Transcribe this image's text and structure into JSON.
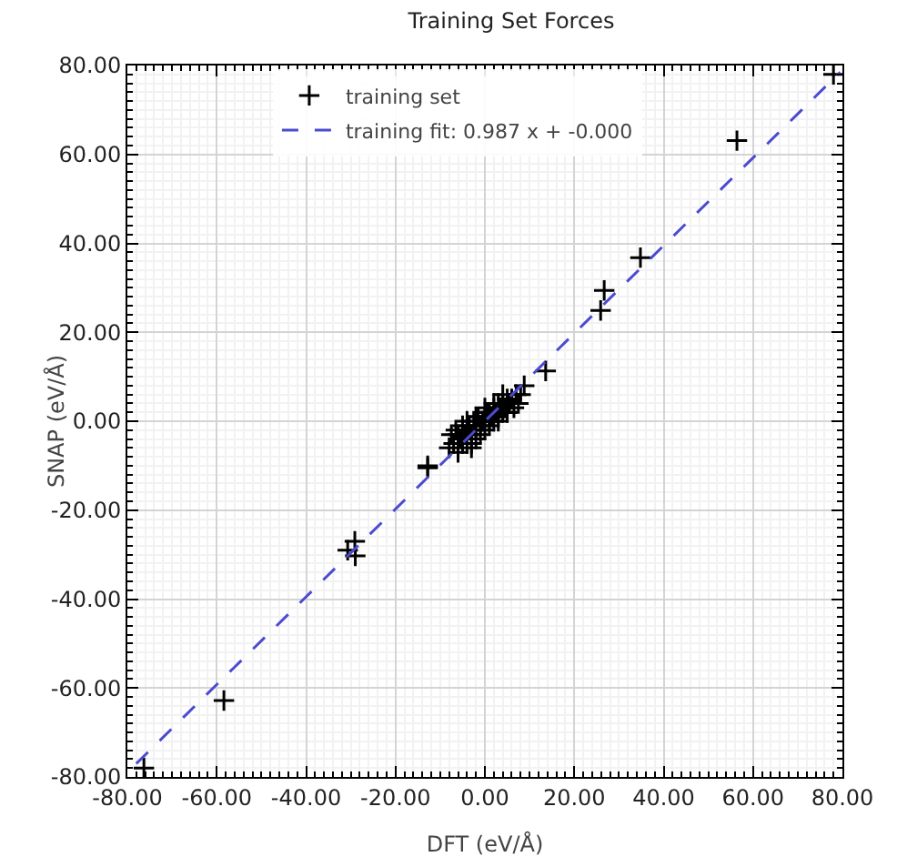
{
  "chart_data": {
    "type": "scatter",
    "title": "Training Set Forces",
    "xlabel": "DFT (eV/Å)",
    "ylabel": "SNAP (eV/Å)",
    "xlim": [
      -80,
      80
    ],
    "ylim": [
      -80,
      80
    ],
    "xticks": [
      {
        "value": -80,
        "label": "-80.00"
      },
      {
        "value": -60,
        "label": "-60.00"
      },
      {
        "value": -40,
        "label": "-40.00"
      },
      {
        "value": -20,
        "label": "-20.00"
      },
      {
        "value": 0,
        "label": "0.00"
      },
      {
        "value": 20,
        "label": "20.00"
      },
      {
        "value": 40,
        "label": "40.00"
      },
      {
        "value": 60,
        "label": "60.00"
      },
      {
        "value": 80,
        "label": "80.00"
      }
    ],
    "yticks": [
      {
        "value": -80,
        "label": "-80.00"
      },
      {
        "value": -60,
        "label": "-60.00"
      },
      {
        "value": -40,
        "label": "-40.00"
      },
      {
        "value": -20,
        "label": "-20.00"
      },
      {
        "value": 0,
        "label": "0.00"
      },
      {
        "value": 20,
        "label": "20.00"
      },
      {
        "value": 40,
        "label": "40.00"
      },
      {
        "value": 60,
        "label": "60.00"
      },
      {
        "value": 80,
        "label": "80.00"
      }
    ],
    "grid": true,
    "legend": "top",
    "series": [
      {
        "name": "training set",
        "marker": "cross",
        "color": "#000000",
        "x": [
          78,
          56.4,
          34.8,
          26.7,
          25.9,
          13.6,
          8.8,
          -58.4,
          -76.3,
          -29.1,
          -30.7,
          -29,
          -12.8,
          -12.8,
          -8,
          -7.5,
          -7,
          -6.5,
          -6,
          -5.5,
          -5,
          -5,
          -4.5,
          -4,
          -4,
          -3.5,
          -3,
          -3,
          -2.5,
          -2,
          -2,
          -1.5,
          -1,
          -1,
          -0.5,
          0,
          0,
          0.5,
          1,
          1,
          1.5,
          2,
          2,
          2.5,
          3,
          3,
          3.5,
          4,
          4,
          4.5,
          5,
          5,
          5.5,
          6,
          6.5,
          7,
          7.5,
          8,
          -4,
          -2,
          0,
          2,
          4,
          -6,
          -3,
          1,
          3,
          5
        ],
        "values": [
          78,
          63.1,
          36.8,
          29.4,
          24.9,
          11.3,
          8,
          -62.8,
          -78,
          -27,
          -29,
          -30.3,
          -10.5,
          -10,
          -6,
          -3,
          -5,
          -2,
          -3,
          -4,
          -1,
          -5,
          -3,
          -2,
          -5,
          -1,
          -3,
          -5,
          0,
          -2,
          -4,
          1,
          -1,
          -3,
          0,
          1,
          -2,
          2,
          0,
          2,
          1,
          3,
          0,
          2,
          4,
          1,
          3,
          2,
          4,
          3,
          5,
          2,
          4,
          5,
          3,
          6,
          4,
          6,
          0,
          1,
          3,
          4,
          6,
          -7,
          -6,
          -1,
          0,
          2
        ]
      },
      {
        "name": "training fit: 0.987 x + -0.000",
        "type": "line",
        "marker": "none",
        "line_style": "dashed",
        "color": "#4b4bd0",
        "x": [
          -78,
          79.5
        ],
        "values": [
          -77,
          78.5
        ]
      }
    ]
  }
}
